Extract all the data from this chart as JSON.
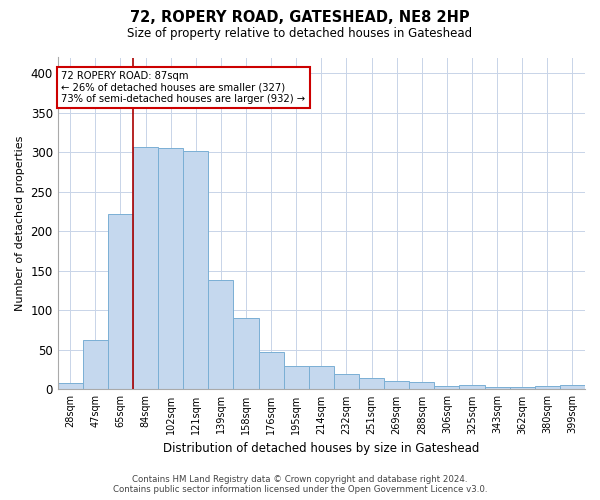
{
  "title": "72, ROPERY ROAD, GATESHEAD, NE8 2HP",
  "subtitle": "Size of property relative to detached houses in Gateshead",
  "xlabel": "Distribution of detached houses by size in Gateshead",
  "ylabel": "Number of detached properties",
  "categories": [
    "28sqm",
    "47sqm",
    "65sqm",
    "84sqm",
    "102sqm",
    "121sqm",
    "139sqm",
    "158sqm",
    "176sqm",
    "195sqm",
    "214sqm",
    "232sqm",
    "251sqm",
    "269sqm",
    "288sqm",
    "306sqm",
    "325sqm",
    "343sqm",
    "362sqm",
    "380sqm",
    "399sqm"
  ],
  "values": [
    8,
    63,
    222,
    307,
    305,
    302,
    139,
    90,
    47,
    30,
    30,
    19,
    14,
    11,
    10,
    4,
    5,
    3,
    3,
    4,
    5
  ],
  "bar_color": "#c5d8ee",
  "bar_edge_color": "#7aafd4",
  "property_line_x": 2.5,
  "property_line_color": "#aa0000",
  "annotation_line1": "72 ROPERY ROAD: 87sqm",
  "annotation_line2": "← 26% of detached houses are smaller (327)",
  "annotation_line3": "73% of semi-detached houses are larger (932) →",
  "annotation_box_color": "#ffffff",
  "annotation_box_edge_color": "#cc0000",
  "footer_line1": "Contains HM Land Registry data © Crown copyright and database right 2024.",
  "footer_line2": "Contains public sector information licensed under the Open Government Licence v3.0.",
  "ylim": [
    0,
    420
  ],
  "yticks": [
    0,
    50,
    100,
    150,
    200,
    250,
    300,
    350,
    400
  ],
  "background_color": "#ffffff",
  "grid_color": "#c8d4e8"
}
